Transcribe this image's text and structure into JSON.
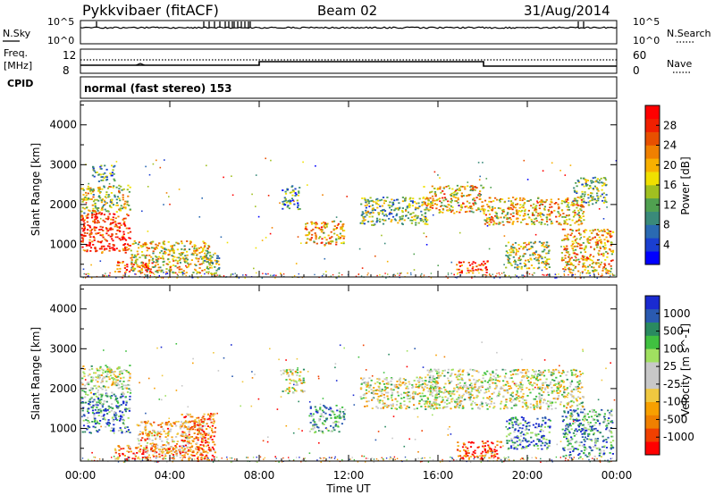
{
  "header": {
    "station": "Pykkvibaer (fitACF)",
    "beam": "Beam 02",
    "date": "31/Aug/2014"
  },
  "sky_panel": {
    "left_label": "N.Sky",
    "right_label": "N.Search",
    "left_ticks": [
      "10^5",
      "10^0"
    ],
    "right_ticks": [
      "10^5",
      "10^0"
    ]
  },
  "freq_panel": {
    "left_label": "Freq.",
    "left_unit": "[MHz]",
    "right_label": "Nave",
    "left_ticks": [
      "12",
      "8"
    ],
    "right_ticks": [
      "60",
      "0"
    ]
  },
  "cpid": {
    "label": "CPID",
    "text": "normal (fast stereo) 153"
  },
  "chart_data": [
    {
      "type": "heatmap",
      "title": "",
      "xlabel": "Time UT",
      "ylabel": "Slant Range [km]",
      "xticks": [
        "00:00",
        "04:00",
        "08:00",
        "12:00",
        "16:00",
        "20:00",
        "00:00"
      ],
      "yticks": [
        1000,
        2000,
        3000,
        4000
      ],
      "ylim": [
        180,
        4600
      ],
      "colorbar": {
        "label": "Power [dB]",
        "ticks": [
          "28",
          "24",
          "20",
          "16",
          "12",
          "8",
          "4"
        ],
        "colors": [
          "#0000ff",
          "#1a3fd0",
          "#2a6ab2",
          "#3a8a7a",
          "#50a050",
          "#a0c020",
          "#f0e000",
          "#f8b000",
          "#f08000",
          "#e85000",
          "#f02000",
          "#ff0000"
        ]
      },
      "regions": [
        {
          "t": [
            0.0,
            2.2
          ],
          "r": [
            800,
            1800
          ],
          "level": 0.9
        },
        {
          "t": [
            0.0,
            2.2
          ],
          "r": [
            1800,
            2500
          ],
          "level": 0.5
        },
        {
          "t": [
            0.5,
            1.5
          ],
          "r": [
            2600,
            3000
          ],
          "level": 0.3
        },
        {
          "t": [
            1.5,
            3.2
          ],
          "r": [
            300,
            600
          ],
          "level": 0.85
        },
        {
          "t": [
            2.2,
            5.8
          ],
          "r": [
            300,
            1100
          ],
          "level": 0.55
        },
        {
          "t": [
            5.5,
            6.2
          ],
          "r": [
            200,
            800
          ],
          "level": 0.4
        },
        {
          "t": [
            9.0,
            9.8
          ],
          "r": [
            1900,
            2500
          ],
          "level": 0.3
        },
        {
          "t": [
            10.0,
            11.8
          ],
          "r": [
            1000,
            1600
          ],
          "level": 0.65
        },
        {
          "t": [
            12.5,
            15.5
          ],
          "r": [
            1500,
            2200
          ],
          "level": 0.4
        },
        {
          "t": [
            15.3,
            18.0
          ],
          "r": [
            1800,
            2500
          ],
          "level": 0.6
        },
        {
          "t": [
            16.8,
            18.2
          ],
          "r": [
            300,
            600
          ],
          "level": 0.85
        },
        {
          "t": [
            18.0,
            22.5
          ],
          "r": [
            1500,
            2200
          ],
          "level": 0.6
        },
        {
          "t": [
            19.0,
            21.0
          ],
          "r": [
            400,
            1100
          ],
          "level": 0.5
        },
        {
          "t": [
            21.5,
            23.8
          ],
          "r": [
            300,
            1400
          ],
          "level": 0.65
        },
        {
          "t": [
            22.0,
            23.5
          ],
          "r": [
            2000,
            2700
          ],
          "level": 0.4
        }
      ]
    },
    {
      "type": "heatmap",
      "title": "",
      "xlabel": "Time UT",
      "ylabel": "Slant Range [km]",
      "xticks": [
        "00:00",
        "04:00",
        "08:00",
        "12:00",
        "16:00",
        "20:00",
        "00:00"
      ],
      "yticks": [
        1000,
        2000,
        3000,
        4000
      ],
      "ylim": [
        180,
        4600
      ],
      "colorbar": {
        "label": "Velocity [m s^-1]",
        "ticks": [
          "1000",
          "500",
          "100",
          "25",
          "-25",
          "-100",
          "-500",
          "-1000"
        ],
        "colors": [
          "#ff0000",
          "#f04000",
          "#f08000",
          "#f8a000",
          "#f0c840",
          "#c8c8c8",
          "#c8c8c8",
          "#a0e060",
          "#40c040",
          "#2a8a60",
          "#2a5ab0",
          "#1a2ad0"
        ]
      },
      "regions": [
        {
          "t": [
            0.0,
            2.2
          ],
          "r": [
            900,
            1900
          ],
          "level": 0.8
        },
        {
          "t": [
            0.0,
            2.2
          ],
          "r": [
            1900,
            2600
          ],
          "level": 0.5
        },
        {
          "t": [
            1.5,
            4.5
          ],
          "r": [
            250,
            600
          ],
          "level": 0.2
        },
        {
          "t": [
            2.5,
            5.5
          ],
          "r": [
            400,
            1200
          ],
          "level": 0.35
        },
        {
          "t": [
            4.5,
            6.0
          ],
          "r": [
            200,
            1400
          ],
          "level": 0.2
        },
        {
          "t": [
            9.0,
            10.0
          ],
          "r": [
            1900,
            2500
          ],
          "level": 0.5
        },
        {
          "t": [
            10.2,
            11.8
          ],
          "r": [
            900,
            1600
          ],
          "level": 0.7
        },
        {
          "t": [
            12.5,
            16.0
          ],
          "r": [
            1500,
            2300
          ],
          "level": 0.5
        },
        {
          "t": [
            15.5,
            22.5
          ],
          "r": [
            1500,
            2500
          ],
          "level": 0.5
        },
        {
          "t": [
            16.8,
            18.8
          ],
          "r": [
            250,
            700
          ],
          "level": 0.15
        },
        {
          "t": [
            19.0,
            21.0
          ],
          "r": [
            500,
            1300
          ],
          "level": 0.8
        },
        {
          "t": [
            21.5,
            23.8
          ],
          "r": [
            300,
            1500
          ],
          "level": 0.75
        }
      ]
    }
  ]
}
